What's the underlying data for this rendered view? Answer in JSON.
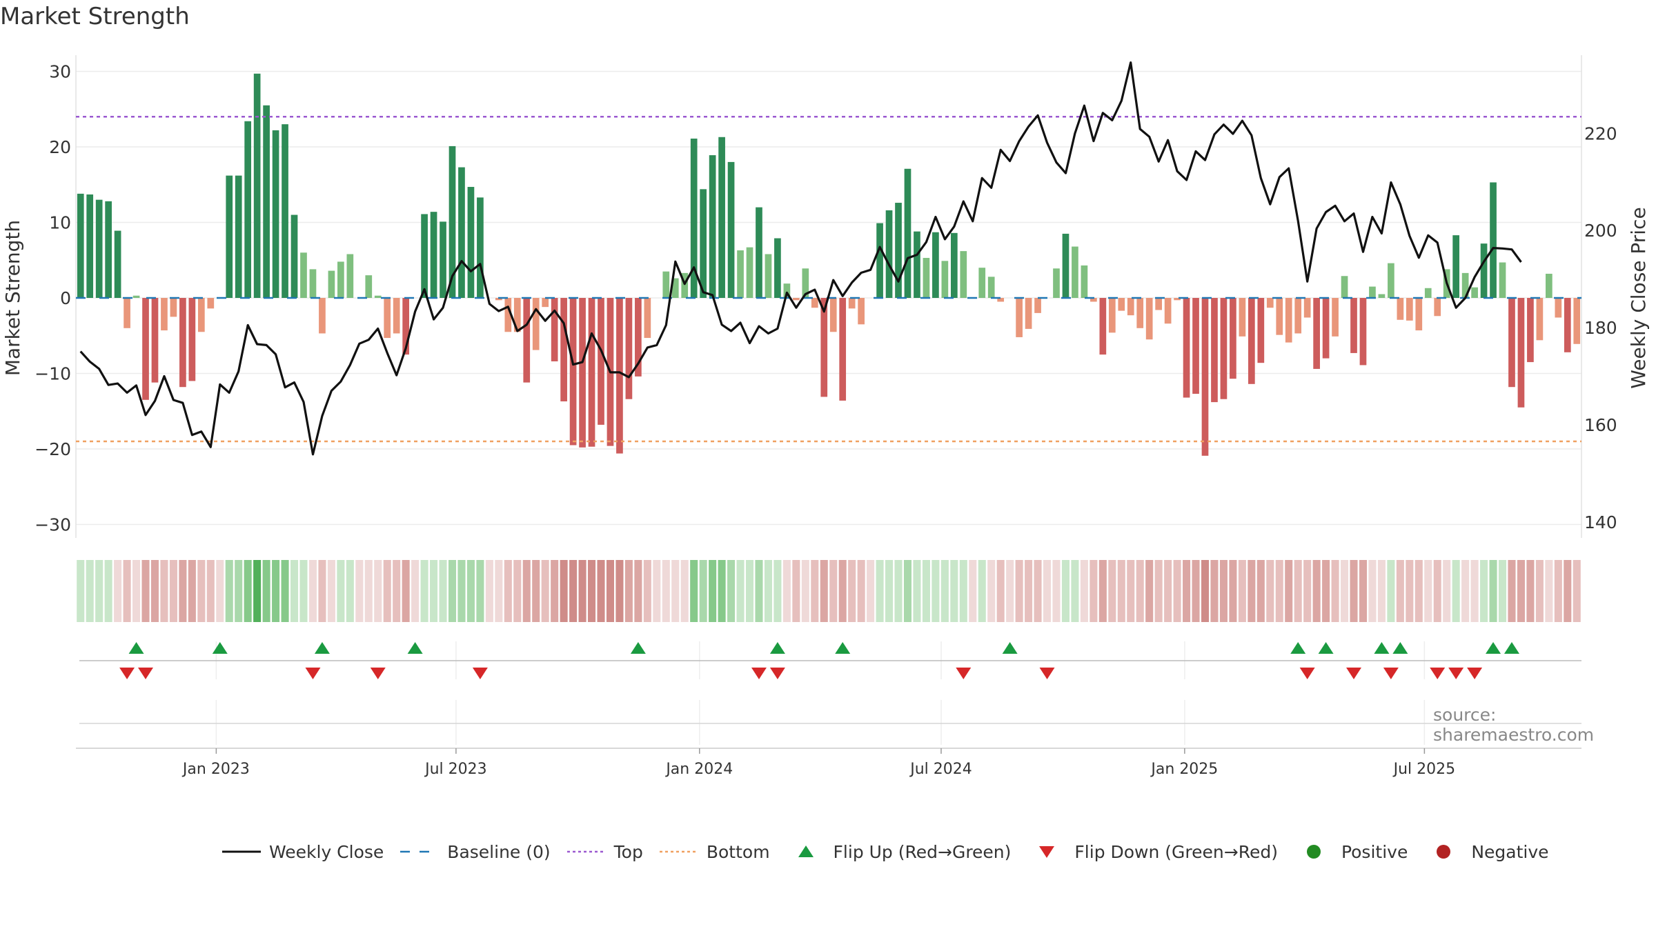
{
  "title": "Market Strength",
  "source": "source: sharemaestro.com",
  "colors": {
    "green_strong": "#2e8b57",
    "green_light": "#7fbf7f",
    "red_strong": "#cd5c5c",
    "red_light": "#e9967a",
    "line": "#111111",
    "baseline": "#1f77b4",
    "top": "#9b59d0",
    "bottom": "#f0a060",
    "flip_up": "#1a9a40",
    "flip_down": "#d62728",
    "positive": "#228b22",
    "negative": "#b22222"
  },
  "legend": [
    {
      "key": "line",
      "label": "Weekly Close"
    },
    {
      "key": "baseline",
      "label": "Baseline (0)"
    },
    {
      "key": "top",
      "label": "Top"
    },
    {
      "key": "bottom",
      "label": "Bottom"
    },
    {
      "key": "flip_up",
      "label": "Flip Up (Red→Green)"
    },
    {
      "key": "flip_down",
      "label": "Flip Down (Green→Red)"
    },
    {
      "key": "positive",
      "label": "Positive"
    },
    {
      "key": "negative",
      "label": "Negative"
    }
  ],
  "chart_data": {
    "type": "bar",
    "title": "Market Strength",
    "ylabel": "Market Strength",
    "y2label": "Weekly Close Price",
    "ylim": [
      -33,
      33
    ],
    "y2lim": [
      136.7,
      236.1
    ],
    "yticks": [
      30,
      20,
      10,
      0,
      -10,
      -20,
      -30
    ],
    "yticklabels": [
      "30",
      "20",
      "10",
      "0",
      "−10",
      "−20",
      "−30"
    ],
    "y2ticks": [
      220,
      200,
      180,
      160,
      140
    ],
    "xticks": [
      {
        "label": "Jan 2023",
        "week": 14.6
      },
      {
        "label": "Jul 2023",
        "week": 40.4
      },
      {
        "label": "Jan 2024",
        "week": 66.6
      },
      {
        "label": "Jul 2024",
        "week": 92.6
      },
      {
        "label": "Jan 2025",
        "week": 118.8
      },
      {
        "label": "Jul 2025",
        "week": 144.6
      }
    ],
    "top_line": 24,
    "bottom_line": -19,
    "baseline": 0,
    "strength": [
      13.8,
      13.7,
      13.0,
      12.8,
      8.9,
      -4.0,
      0.3,
      -13.5,
      -11.2,
      -4.3,
      -2.5,
      -11.8,
      -11.0,
      -4.5,
      -1.4,
      0,
      16.2,
      16.2,
      23.4,
      29.7,
      25.5,
      22.2,
      23.0,
      11.0,
      6.0,
      3.8,
      -4.7,
      3.6,
      4.8,
      5.8,
      0,
      3.0,
      0.3,
      -5.3,
      -4.7,
      -7.5,
      0,
      11.1,
      11.4,
      10.1,
      20.1,
      17.3,
      14.7,
      13.3,
      0,
      -0.3,
      -4.5,
      -4.5,
      -11.2,
      -6.9,
      -1.2,
      -8.4,
      -13.7,
      -19.5,
      -19.8,
      -19.7,
      -16.8,
      -19.6,
      -20.6,
      -13.4,
      -10.4,
      -5.3,
      0,
      3.5,
      2.6,
      3.3,
      21.1,
      14.4,
      18.9,
      21.3,
      18.0,
      6.3,
      6.7,
      12.0,
      5.8,
      7.9,
      1.9,
      -0.3,
      3.9,
      -1.3,
      -13.1,
      -4.5,
      -13.6,
      -1.4,
      -3.5,
      0,
      9.9,
      11.6,
      12.6,
      17.1,
      8.8,
      5.3,
      8.7,
      4.9,
      8.6,
      6.2,
      0,
      4.0,
      2.8,
      -0.5,
      0,
      -5.2,
      -4.1,
      -2.0,
      0,
      3.9,
      8.5,
      6.8,
      4.3,
      -0.5,
      -7.5,
      -4.6,
      -1.7,
      -2.3,
      -4.0,
      -5.5,
      -1.6,
      -3.4,
      -0.3,
      -13.2,
      -12.7,
      -20.9,
      -13.8,
      -13.4,
      -10.7,
      -5.1,
      -11.4,
      -8.6,
      -1.3,
      -4.9,
      -5.9,
      -4.7,
      -2.6,
      -9.4,
      -8.0,
      -5.1,
      2.9,
      -7.3,
      -8.9,
      1.5,
      0.5,
      4.6,
      -2.9,
      -3.0,
      -4.3,
      1.3,
      -2.4,
      3.8,
      8.3,
      3.3,
      1.4,
      7.2,
      15.3,
      4.7,
      -11.8,
      -14.5,
      -8.5,
      -5.6,
      3.2,
      -2.6,
      -7.2,
      -6.1
    ],
    "close": [
      175.1,
      173.0,
      171.5,
      168.2,
      168.5,
      166.6,
      168.1,
      162.0,
      164.9,
      170.0,
      165.1,
      164.5,
      157.9,
      158.6,
      155.4,
      168.3,
      166.6,
      171.0,
      180.5,
      176.6,
      176.4,
      174.5,
      167.7,
      168.7,
      164.7,
      153.9,
      161.8,
      167.0,
      168.9,
      172.3,
      176.7,
      177.5,
      179.8,
      174.8,
      170.2,
      175.8,
      183.3,
      187.9,
      181.7,
      184.1,
      190.6,
      193.7,
      191.6,
      193.1,
      184.9,
      183.4,
      184.3,
      179.3,
      180.6,
      183.8,
      181.4,
      183.5,
      180.9,
      172.4,
      172.9,
      178.8,
      175.4,
      170.8,
      170.8,
      169.8,
      172.6,
      175.9,
      176.4,
      180.5,
      193.6,
      189.0,
      192.4,
      187.3,
      186.7,
      180.6,
      179.3,
      181.0,
      176.8,
      180.3,
      178.8,
      179.8,
      187.2,
      184.1,
      186.9,
      187.8,
      183.3,
      189.8,
      186.5,
      189.3,
      191.3,
      191.9,
      196.6,
      192.9,
      189.5,
      194.3,
      195.0,
      197.6,
      202.8,
      198.2,
      200.8,
      206.0,
      201.9,
      210.8,
      208.8,
      216.6,
      214.3,
      218.4,
      221.4,
      223.7,
      218.1,
      214.0,
      211.8,
      220.0,
      225.7,
      218.4,
      224.2,
      222.7,
      226.7,
      234.6,
      220.9,
      219.3,
      214.2,
      218.6,
      212.2,
      210.4,
      216.3,
      214.5,
      219.8,
      221.8,
      219.9,
      222.6,
      219.6,
      210.8,
      205.4,
      211.0,
      212.8,
      202.0,
      189.5,
      200.4,
      203.8,
      205.1,
      201.9,
      203.5,
      195.6,
      202.8,
      199.4,
      209.9,
      205.4,
      198.9,
      194.4,
      199.0,
      197.5,
      189.2,
      184.1,
      186.1,
      190.4,
      193.6,
      196.4,
      196.3,
      196.1,
      193.5
    ],
    "heat_levels": [
      5,
      5,
      5,
      5,
      4,
      3,
      4,
      2,
      2,
      3,
      3,
      2,
      2,
      3,
      3,
      4,
      6,
      6,
      7,
      8,
      7,
      7,
      7,
      5,
      5,
      4,
      3,
      4,
      5,
      5,
      4,
      4,
      4,
      3,
      3,
      2,
      4,
      5,
      5,
      5,
      6,
      6,
      6,
      6,
      4,
      4,
      3,
      3,
      2,
      2,
      3,
      2,
      1,
      1,
      1,
      1,
      1,
      1,
      1,
      2,
      2,
      3,
      4,
      4,
      4,
      4,
      7,
      6,
      7,
      7,
      6,
      5,
      5,
      6,
      5,
      5,
      4,
      3,
      4,
      3,
      2,
      3,
      2,
      3,
      3,
      4,
      5,
      5,
      5,
      6,
      5,
      5,
      5,
      5,
      5,
      5,
      4,
      5,
      4,
      3,
      4,
      3,
      3,
      3,
      4,
      4,
      5,
      5,
      4,
      3,
      2,
      3,
      3,
      3,
      3,
      2,
      3,
      3,
      3,
      2,
      2,
      1,
      2,
      2,
      2,
      3,
      2,
      2,
      3,
      3,
      2,
      3,
      3,
      2,
      2,
      3,
      4,
      2,
      2,
      4,
      4,
      5,
      3,
      3,
      3,
      4,
      3,
      4,
      5,
      4,
      4,
      5,
      6,
      5,
      2,
      2,
      2,
      3,
      4,
      3,
      2,
      3
    ],
    "flip_up_weeks": [
      6,
      15,
      26,
      36,
      60,
      75,
      82,
      100,
      131,
      134,
      140,
      142,
      152,
      154
    ],
    "flip_down_weeks": [
      5,
      7,
      25,
      32,
      43,
      73,
      75,
      95,
      104,
      132,
      137,
      141,
      146,
      148,
      150
    ]
  }
}
